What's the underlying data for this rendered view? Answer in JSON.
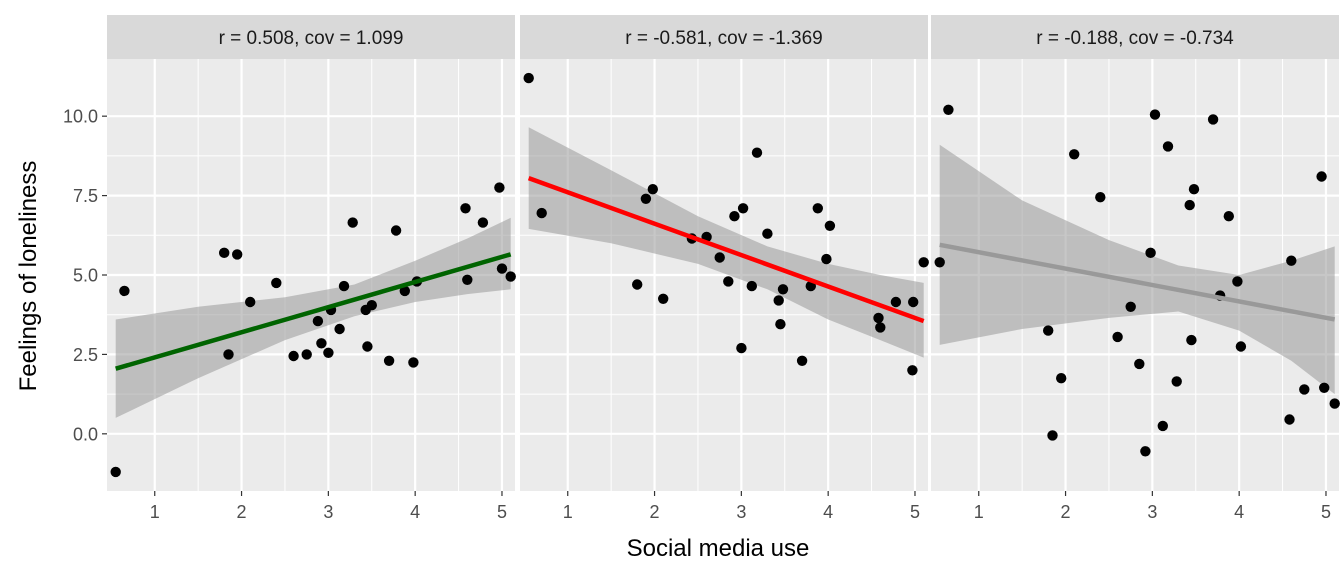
{
  "chart_data": {
    "type": "scatter",
    "xlabel": "Social media use",
    "ylabel": "Feelings of loneliness",
    "xlim": [
      0.45,
      5.15
    ],
    "ylim": [
      -1.8,
      11.8
    ],
    "x_ticks": [
      1,
      2,
      3,
      4,
      5
    ],
    "y_ticks": [
      0.0,
      2.5,
      5.0,
      7.5,
      10.0
    ],
    "y_tick_labels": [
      "0.0",
      "2.5",
      "5.0",
      "7.5",
      "10.0"
    ],
    "grid": true,
    "panel_background": "#ebebeb",
    "strip_background": "#d9d9d9",
    "point_color": "#000000",
    "band_color": "#999999",
    "panels": [
      {
        "strip_label": "r = 0.508, cov = 1.099",
        "line_color": "#006400",
        "fit": {
          "x": [
            0.55,
            5.1
          ],
          "y": [
            2.05,
            5.65
          ]
        },
        "band": {
          "x": [
            0.55,
            1.5,
            2.5,
            3.3,
            4.0,
            4.6,
            5.1
          ],
          "lower": [
            0.5,
            1.75,
            2.95,
            3.7,
            4.15,
            4.4,
            4.55
          ],
          "upper": [
            3.6,
            4.0,
            4.3,
            4.7,
            5.45,
            6.15,
            6.8
          ]
        },
        "points": [
          [
            0.55,
            -1.2
          ],
          [
            0.65,
            4.5
          ],
          [
            1.8,
            5.7
          ],
          [
            1.85,
            2.5
          ],
          [
            1.95,
            5.65
          ],
          [
            2.1,
            4.15
          ],
          [
            2.4,
            4.75
          ],
          [
            2.6,
            2.45
          ],
          [
            2.75,
            2.5
          ],
          [
            2.88,
            3.55
          ],
          [
            2.92,
            2.85
          ],
          [
            3.0,
            2.55
          ],
          [
            3.03,
            3.9
          ],
          [
            3.13,
            3.3
          ],
          [
            3.18,
            4.65
          ],
          [
            3.28,
            6.65
          ],
          [
            3.43,
            3.9
          ],
          [
            3.45,
            2.75
          ],
          [
            3.5,
            4.05
          ],
          [
            3.7,
            2.3
          ],
          [
            3.78,
            6.4
          ],
          [
            3.88,
            4.5
          ],
          [
            3.98,
            2.25
          ],
          [
            4.02,
            4.8
          ],
          [
            4.58,
            7.1
          ],
          [
            4.6,
            4.85
          ],
          [
            4.78,
            6.65
          ],
          [
            4.97,
            7.75
          ],
          [
            5.0,
            5.2
          ],
          [
            5.1,
            4.95
          ]
        ]
      },
      {
        "strip_label": "r = -0.581, cov = -1.369",
        "line_color": "#ff0000",
        "fit": {
          "x": [
            0.55,
            5.1
          ],
          "y": [
            8.05,
            3.55
          ]
        },
        "band": {
          "x": [
            0.55,
            1.5,
            2.5,
            3.3,
            4.0,
            4.6,
            5.1
          ],
          "lower": [
            6.45,
            6.0,
            5.35,
            4.55,
            3.6,
            2.95,
            2.4
          ],
          "upper": [
            9.65,
            8.3,
            6.85,
            5.9,
            5.35,
            5.0,
            4.75
          ]
        },
        "points": [
          [
            0.55,
            11.2
          ],
          [
            0.7,
            6.95
          ],
          [
            1.8,
            4.7
          ],
          [
            1.9,
            7.4
          ],
          [
            1.98,
            7.7
          ],
          [
            2.1,
            4.25
          ],
          [
            2.43,
            6.15
          ],
          [
            2.6,
            6.2
          ],
          [
            2.75,
            5.55
          ],
          [
            2.85,
            4.8
          ],
          [
            2.92,
            6.85
          ],
          [
            3.0,
            2.7
          ],
          [
            3.02,
            7.1
          ],
          [
            3.12,
            4.65
          ],
          [
            3.18,
            8.85
          ],
          [
            3.3,
            6.3
          ],
          [
            3.43,
            4.2
          ],
          [
            3.45,
            3.45
          ],
          [
            3.48,
            4.55
          ],
          [
            3.7,
            2.3
          ],
          [
            3.8,
            4.65
          ],
          [
            3.88,
            7.1
          ],
          [
            3.98,
            5.5
          ],
          [
            4.02,
            6.55
          ],
          [
            4.58,
            3.65
          ],
          [
            4.6,
            3.35
          ],
          [
            4.78,
            4.15
          ],
          [
            4.97,
            2.0
          ],
          [
            4.98,
            4.15
          ],
          [
            5.1,
            5.4
          ]
        ]
      },
      {
        "strip_label": "r = -0.188, cov = -0.734",
        "line_color": "#999999",
        "fit": {
          "x": [
            0.55,
            5.1
          ],
          "y": [
            5.95,
            3.6
          ]
        },
        "band": {
          "x": [
            0.55,
            1.5,
            2.5,
            3.3,
            4.0,
            4.6,
            5.1
          ],
          "lower": [
            2.8,
            3.3,
            3.65,
            3.85,
            3.25,
            2.3,
            1.25
          ],
          "upper": [
            9.1,
            7.35,
            6.1,
            5.3,
            5.0,
            5.45,
            5.9
          ]
        },
        "points": [
          [
            0.55,
            5.4
          ],
          [
            0.65,
            10.2
          ],
          [
            1.8,
            3.25
          ],
          [
            1.85,
            -0.05
          ],
          [
            1.95,
            1.75
          ],
          [
            2.1,
            8.8
          ],
          [
            2.4,
            7.45
          ],
          [
            2.6,
            3.05
          ],
          [
            2.75,
            4.0
          ],
          [
            2.85,
            2.2
          ],
          [
            2.92,
            -0.55
          ],
          [
            2.98,
            5.7
          ],
          [
            3.03,
            10.05
          ],
          [
            3.12,
            0.25
          ],
          [
            3.18,
            9.05
          ],
          [
            3.28,
            1.65
          ],
          [
            3.43,
            7.2
          ],
          [
            3.45,
            2.95
          ],
          [
            3.48,
            7.7
          ],
          [
            3.7,
            9.9
          ],
          [
            3.78,
            4.35
          ],
          [
            3.88,
            6.85
          ],
          [
            3.98,
            4.8
          ],
          [
            4.02,
            2.75
          ],
          [
            4.58,
            0.45
          ],
          [
            4.6,
            5.45
          ],
          [
            4.75,
            1.4
          ],
          [
            4.95,
            8.1
          ],
          [
            4.98,
            1.45
          ],
          [
            5.1,
            0.95
          ]
        ]
      }
    ]
  }
}
